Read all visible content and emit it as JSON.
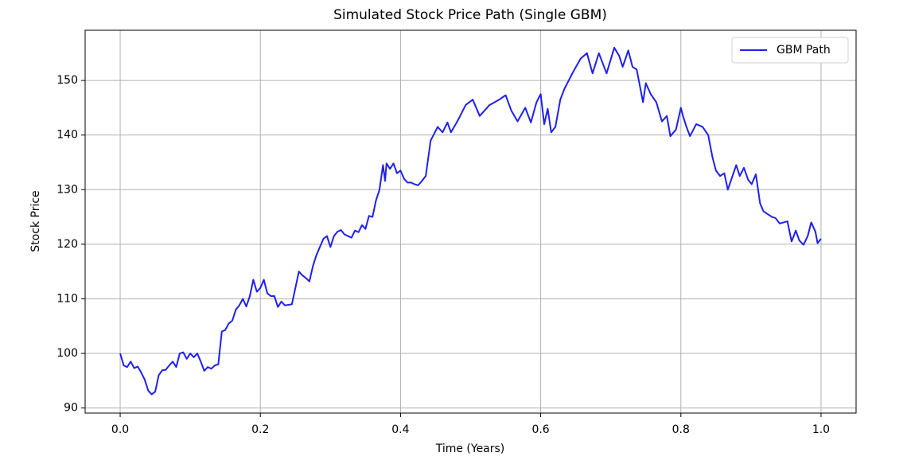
{
  "chart_data": {
    "type": "line",
    "title": "Simulated Stock Price Path (Single GBM)",
    "x_label": "Time (Years)",
    "y_label": "Stock Price",
    "x": [
      0,
      0.005,
      0.01,
      0.015,
      0.02,
      0.025,
      0.03,
      0.035,
      0.04,
      0.045,
      0.05,
      0.055,
      0.06,
      0.065,
      0.07,
      0.075,
      0.08,
      0.085,
      0.09,
      0.095,
      0.1,
      0.105,
      0.11,
      0.115,
      0.12,
      0.125,
      0.13,
      0.135,
      0.14,
      0.145,
      0.15,
      0.155,
      0.16,
      0.165,
      0.17,
      0.175,
      0.18,
      0.185,
      0.19,
      0.195,
      0.2,
      0.205,
      0.21,
      0.215,
      0.22,
      0.225,
      0.23,
      0.235,
      0.24,
      0.245,
      0.25,
      0.255,
      0.26,
      0.265,
      0.27,
      0.275,
      0.28,
      0.285,
      0.29,
      0.295,
      0.3,
      0.305,
      0.31,
      0.315,
      0.32,
      0.325,
      0.33,
      0.335,
      0.34,
      0.345,
      0.35,
      0.355,
      0.36,
      0.365,
      0.37,
      0.375,
      0.378,
      0.38,
      0.385,
      0.39,
      0.395,
      0.4,
      0.405,
      0.41,
      0.415,
      0.42,
      0.425,
      0.43,
      0.436,
      0.443,
      0.453,
      0.46,
      0.467,
      0.472,
      0.481,
      0.493,
      0.503,
      0.513,
      0.527,
      0.541,
      0.55,
      0.558,
      0.567,
      0.578,
      0.586,
      0.594,
      0.6,
      0.605,
      0.61,
      0.615,
      0.621,
      0.628,
      0.634,
      0.646,
      0.657,
      0.666,
      0.674,
      0.683,
      0.694,
      0.705,
      0.712,
      0.717,
      0.725,
      0.731,
      0.737,
      0.746,
      0.75,
      0.757,
      0.765,
      0.773,
      0.78,
      0.785,
      0.793,
      0.8,
      0.803,
      0.808,
      0.813,
      0.822,
      0.831,
      0.839,
      0.845,
      0.85,
      0.856,
      0.862,
      0.867,
      0.879,
      0.884,
      0.89,
      0.896,
      0.901,
      0.907,
      0.913,
      0.918,
      0.93,
      0.935,
      0.941,
      0.952,
      0.958,
      0.964,
      0.969,
      0.975,
      0.981,
      0.986,
      0.992,
      0.995,
      1.0
    ],
    "series": [
      {
        "name": "GBM Path",
        "color": "#1f1fef",
        "values": [
          100,
          97.8,
          97.5,
          98.5,
          97.3,
          97.6,
          96.5,
          95.2,
          93.2,
          92.5,
          93,
          96,
          96.9,
          97,
          97.8,
          98.5,
          97.5,
          100,
          100.2,
          99,
          100,
          99.3,
          100,
          98.5,
          96.8,
          97.5,
          97.2,
          97.8,
          98,
          104,
          104.3,
          105.5,
          106,
          108,
          108.8,
          110,
          108.6,
          110.5,
          113.5,
          111.3,
          112,
          113.5,
          111,
          110.5,
          110.5,
          108.5,
          109.5,
          108.8,
          108.9,
          109,
          112,
          115,
          114.3,
          113.8,
          113.2,
          116,
          118,
          119.5,
          121,
          121.5,
          119.5,
          121.5,
          122.3,
          122.6,
          121.8,
          121.5,
          121.2,
          122.5,
          122.2,
          123.5,
          122.8,
          125.2,
          125,
          128,
          130,
          134.5,
          131.6,
          134.8,
          133.8,
          134.8,
          133,
          133.5,
          132,
          131.3,
          131.3,
          131,
          130.8,
          131.5,
          132.5,
          139,
          141.5,
          140.5,
          142.3,
          140.5,
          142.5,
          145.5,
          146.5,
          143.5,
          145.5,
          146.5,
          147.3,
          144.5,
          142.5,
          145,
          142.3,
          146,
          147.5,
          142,
          144.8,
          140.5,
          141.5,
          146.5,
          148.5,
          151.5,
          154,
          155,
          151.3,
          155,
          151.3,
          156,
          154.5,
          152.5,
          155.5,
          152.5,
          152,
          146,
          149.5,
          147.5,
          146,
          142.5,
          143.5,
          139.8,
          141,
          145,
          143.5,
          141.5,
          139.8,
          142,
          141.5,
          140,
          136,
          133.5,
          132.5,
          133,
          130,
          134.5,
          132.5,
          134,
          131.8,
          131,
          132.8,
          127.5,
          126,
          125,
          124.8,
          123.8,
          124.2,
          120.5,
          122.5,
          120.7,
          119.9,
          121.5,
          124,
          122.3,
          120.2,
          121
        ]
      }
    ],
    "xlim": [
      -0.05,
      1.05
    ],
    "ylim": [
      89.07,
      159.2
    ],
    "xticks": [
      {
        "value": 0,
        "label": "0.0"
      },
      0.2,
      0.4,
      0.6,
      0.8,
      {
        "value": 1,
        "label": "1.0"
      }
    ],
    "yticks": [
      90,
      100,
      110,
      120,
      130,
      140,
      150
    ],
    "grid": true,
    "legend": "upper right"
  }
}
